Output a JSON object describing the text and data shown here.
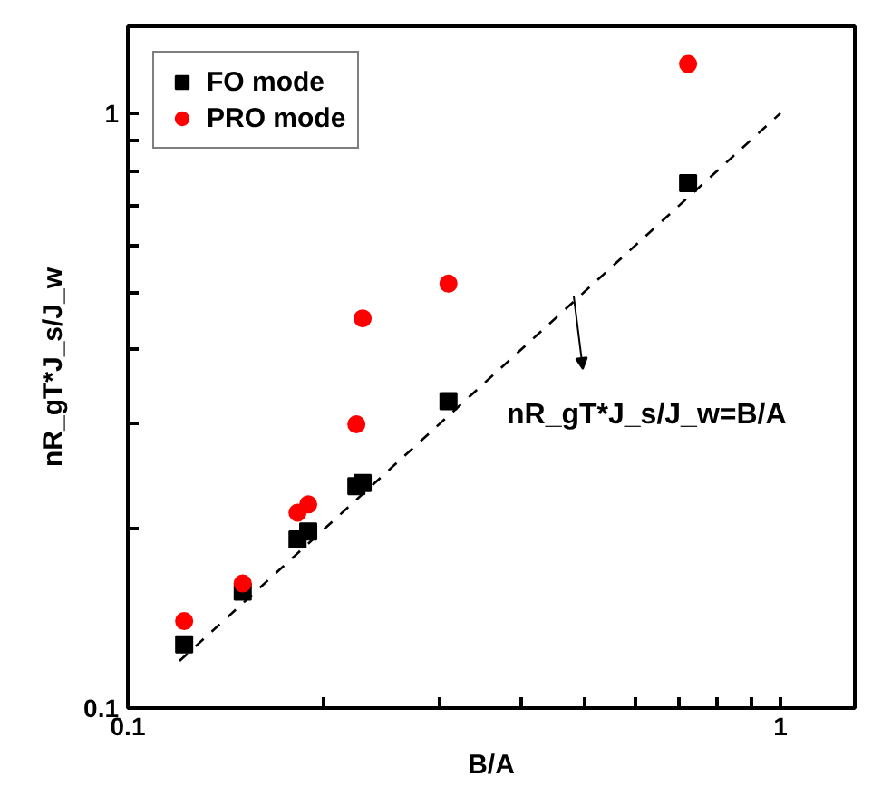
{
  "chart_data": {
    "type": "scatter",
    "xlabel": "B/A",
    "ylabel": "nR_gT*J_s/J_w",
    "log": "xy",
    "grid": false,
    "legend": "top left",
    "xlim": [
      0.1,
      1.3
    ],
    "ylim": [
      0.1,
      1.4
    ],
    "xticks": [
      0.1,
      {
        "value": 0.2,
        "label": null
      },
      {
        "value": 0.3,
        "label": null
      },
      {
        "value": 0.4,
        "label": null
      },
      {
        "value": 0.5,
        "label": null
      },
      {
        "value": 0.6,
        "label": null
      },
      {
        "value": 0.7,
        "label": null
      },
      {
        "value": 0.8,
        "label": null
      },
      {
        "value": 0.9,
        "label": null
      },
      1
    ],
    "yticks": [
      0.1,
      {
        "value": 0.2,
        "label": null
      },
      {
        "value": 0.3,
        "label": null
      },
      {
        "value": 0.4,
        "label": null
      },
      {
        "value": 0.5,
        "label": null
      },
      {
        "value": 0.6,
        "label": null
      },
      {
        "value": 0.7,
        "label": null
      },
      {
        "value": 0.8,
        "label": null
      },
      {
        "value": 0.9,
        "label": null
      },
      1
    ],
    "series": [
      {
        "name": "FO mode",
        "marker": "square",
        "color": "#000000",
        "x": [
          0.122,
          0.15,
          0.182,
          0.189,
          0.224,
          0.229,
          0.31,
          0.722
        ],
        "values": [
          0.128,
          0.157,
          0.192,
          0.198,
          0.236,
          0.239,
          0.328,
          0.763
        ]
      },
      {
        "name": "PRO mode",
        "marker": "circle",
        "color": "#ff0000",
        "x": [
          0.122,
          0.15,
          0.182,
          0.189,
          0.224,
          0.229,
          0.31,
          0.722
        ],
        "values": [
          0.14,
          0.162,
          0.213,
          0.22,
          0.3,
          0.452,
          0.517,
          1.21
        ]
      },
      {
        "type": "line",
        "line_style": "dashed",
        "color": "#000000",
        "x": [
          0.12,
          1.0
        ],
        "values": [
          0.12,
          1.0
        ]
      }
    ],
    "annotations": [
      "nR_gT*J_s/J_w=B/A"
    ]
  }
}
